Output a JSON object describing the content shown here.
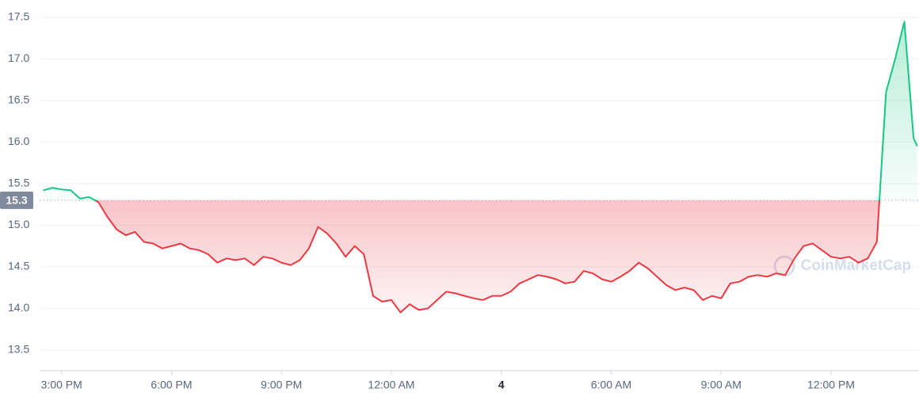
{
  "chart_data": {
    "type": "line",
    "watermark": "CoinMarketCap",
    "reference": 15.3,
    "colors": {
      "up": "#16c784",
      "down": "#ea3943"
    },
    "x": [
      14.5,
      14.75,
      15,
      15.25,
      15.5,
      15.75,
      16,
      16.25,
      16.5,
      16.75,
      17,
      17.25,
      17.5,
      17.75,
      18,
      18.25,
      18.5,
      18.75,
      19,
      19.25,
      19.5,
      19.75,
      20,
      20.25,
      20.5,
      20.75,
      21,
      21.25,
      21.5,
      21.75,
      22,
      22.25,
      22.5,
      22.75,
      23,
      23.25,
      23.5,
      23.75,
      24,
      24.25,
      24.5,
      24.75,
      25,
      25.25,
      25.5,
      25.75,
      26,
      26.25,
      26.5,
      26.75,
      27,
      27.25,
      27.5,
      27.75,
      28,
      28.25,
      28.5,
      28.75,
      29,
      29.25,
      29.5,
      29.75,
      30,
      30.25,
      30.5,
      30.75,
      31,
      31.25,
      31.5,
      31.75,
      32,
      32.25,
      32.5,
      32.75,
      33,
      33.25,
      33.5,
      33.75,
      34,
      34.25,
      34.5,
      34.75,
      35,
      35.25,
      35.5,
      35.75,
      36,
      36.25,
      36.5,
      36.75,
      37,
      37.25,
      37.5,
      37.75,
      38,
      38.25,
      38.35
    ],
    "values": [
      15.42,
      15.45,
      15.43,
      15.42,
      15.32,
      15.34,
      15.28,
      15.1,
      14.95,
      14.88,
      14.92,
      14.8,
      14.78,
      14.72,
      14.75,
      14.78,
      14.72,
      14.7,
      14.65,
      14.55,
      14.6,
      14.58,
      14.6,
      14.52,
      14.62,
      14.6,
      14.55,
      14.52,
      14.58,
      14.72,
      14.98,
      14.9,
      14.78,
      14.62,
      14.75,
      14.65,
      14.15,
      14.08,
      14.1,
      13.95,
      14.05,
      13.98,
      14.0,
      14.1,
      14.2,
      14.18,
      14.15,
      14.12,
      14.1,
      14.15,
      14.15,
      14.2,
      14.3,
      14.35,
      14.4,
      14.38,
      14.35,
      14.3,
      14.32,
      14.45,
      14.42,
      14.35,
      14.32,
      14.38,
      14.45,
      14.55,
      14.48,
      14.38,
      14.28,
      14.22,
      14.25,
      14.22,
      14.1,
      14.15,
      14.12,
      14.3,
      14.32,
      14.38,
      14.4,
      14.38,
      14.42,
      14.4,
      14.6,
      14.75,
      14.78,
      14.7,
      14.62,
      14.6,
      14.62,
      14.55,
      14.6,
      14.8,
      16.6,
      17.0,
      17.45,
      16.05,
      15.95
    ],
    "xlim": [
      14.4,
      38.4
    ],
    "xticks": [
      {
        "value": 15,
        "label": "3:00 PM"
      },
      {
        "value": 18,
        "label": "6:00 PM"
      },
      {
        "value": 21,
        "label": "9:00 PM"
      },
      {
        "value": 24,
        "label": "12:00 AM"
      },
      {
        "value": 27,
        "label": "4"
      },
      {
        "value": 30,
        "label": "6:00 AM"
      },
      {
        "value": 33,
        "label": "9:00 AM"
      },
      {
        "value": 36,
        "label": "12:00 PM"
      }
    ],
    "ylim": [
      13.25,
      17.71
    ],
    "yticks": [
      13.5,
      {
        "value": 14,
        "label": "14.0"
      },
      14.5,
      {
        "value": 15,
        "label": "15.0"
      },
      15.5,
      {
        "value": 16,
        "label": "16.0"
      },
      16.5,
      {
        "value": 17,
        "label": "17.0"
      },
      17.5
    ],
    "grid": true
  }
}
